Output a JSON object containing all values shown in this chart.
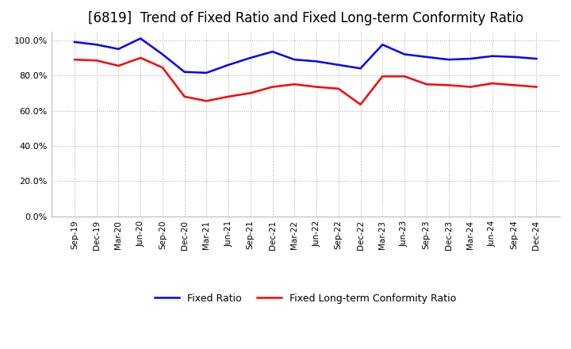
{
  "title": "[6819]  Trend of Fixed Ratio and Fixed Long-term Conformity Ratio",
  "x_labels": [
    "Sep-19",
    "Dec-19",
    "Mar-20",
    "Jun-20",
    "Sep-20",
    "Dec-20",
    "Mar-21",
    "Jun-21",
    "Sep-21",
    "Dec-21",
    "Mar-22",
    "Jun-22",
    "Sep-22",
    "Dec-22",
    "Mar-23",
    "Jun-23",
    "Sep-23",
    "Dec-23",
    "Mar-24",
    "Jun-24",
    "Sep-24",
    "Dec-24"
  ],
  "fixed_ratio": [
    99.0,
    97.5,
    95.0,
    101.0,
    92.0,
    82.0,
    81.5,
    86.0,
    90.0,
    93.5,
    89.0,
    88.0,
    86.0,
    84.0,
    97.5,
    92.0,
    90.5,
    89.0,
    89.5,
    91.0,
    90.5,
    89.5
  ],
  "fixed_lt_ratio": [
    89.0,
    88.5,
    85.5,
    90.0,
    84.5,
    68.0,
    65.5,
    68.0,
    70.0,
    73.5,
    75.0,
    73.5,
    72.5,
    63.5,
    79.5,
    79.5,
    75.0,
    74.5,
    73.5,
    75.5,
    74.5,
    73.5
  ],
  "fixed_ratio_color": "#0000FF",
  "fixed_lt_ratio_color": "#FF0000",
  "ylim": [
    0,
    105
  ],
  "yticks": [
    0,
    20,
    40,
    60,
    80,
    100
  ],
  "background_color": "#FFFFFF",
  "grid_color": "#AAAAAA",
  "title_fontsize": 12,
  "legend_labels": [
    "Fixed Ratio",
    "Fixed Long-term Conformity Ratio"
  ]
}
